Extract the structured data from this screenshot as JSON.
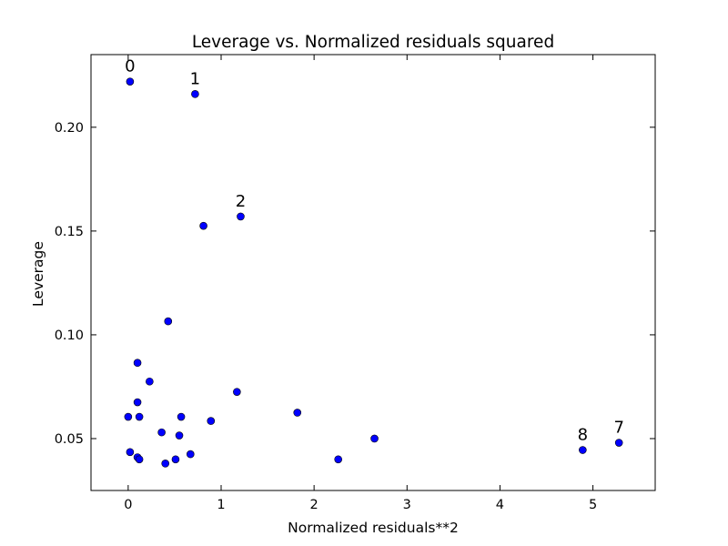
{
  "chart_data": {
    "type": "scatter",
    "title": "Leverage vs. Normalized residuals squared",
    "xlabel": "Normalized residuals**2",
    "ylabel": "Leverage",
    "xlim": [
      -0.4,
      5.67
    ],
    "ylim": [
      0.025,
      0.235
    ],
    "xticks": [
      0,
      1,
      2,
      3,
      4,
      5
    ],
    "yticks": [
      0.05,
      0.1,
      0.15,
      0.2
    ],
    "ytick_labels": [
      "0.05",
      "0.10",
      "0.15",
      "0.20"
    ],
    "grid": false,
    "marker_color": "#0000ff",
    "marker_edge": "#000000",
    "points": [
      {
        "x": 0.02,
        "y": 0.222
      },
      {
        "x": 0.72,
        "y": 0.216
      },
      {
        "x": 1.21,
        "y": 0.157
      },
      {
        "x": 0.81,
        "y": 0.1525
      },
      {
        "x": 0.43,
        "y": 0.1065
      },
      {
        "x": 0.1,
        "y": 0.0865
      },
      {
        "x": 0.23,
        "y": 0.0775
      },
      {
        "x": 0.1,
        "y": 0.0675
      },
      {
        "x": 1.17,
        "y": 0.0725
      },
      {
        "x": 0.0,
        "y": 0.0605
      },
      {
        "x": 0.12,
        "y": 0.0605
      },
      {
        "x": 0.57,
        "y": 0.0605
      },
      {
        "x": 0.89,
        "y": 0.0585
      },
      {
        "x": 1.82,
        "y": 0.0625
      },
      {
        "x": 0.36,
        "y": 0.053
      },
      {
        "x": 0.55,
        "y": 0.0515
      },
      {
        "x": 2.65,
        "y": 0.05
      },
      {
        "x": 4.89,
        "y": 0.0445
      },
      {
        "x": 5.28,
        "y": 0.048
      },
      {
        "x": 0.02,
        "y": 0.0435
      },
      {
        "x": 0.1,
        "y": 0.041
      },
      {
        "x": 0.12,
        "y": 0.04
      },
      {
        "x": 0.4,
        "y": 0.038
      },
      {
        "x": 0.51,
        "y": 0.04
      },
      {
        "x": 0.67,
        "y": 0.0425
      },
      {
        "x": 2.26,
        "y": 0.04
      }
    ],
    "annotations": [
      {
        "text": "0",
        "x": 0.02,
        "y": 0.222
      },
      {
        "text": "1",
        "x": 0.72,
        "y": 0.216
      },
      {
        "text": "2",
        "x": 1.21,
        "y": 0.157
      },
      {
        "text": "8",
        "x": 4.89,
        "y": 0.0445
      },
      {
        "text": "7",
        "x": 5.28,
        "y": 0.048
      }
    ]
  }
}
